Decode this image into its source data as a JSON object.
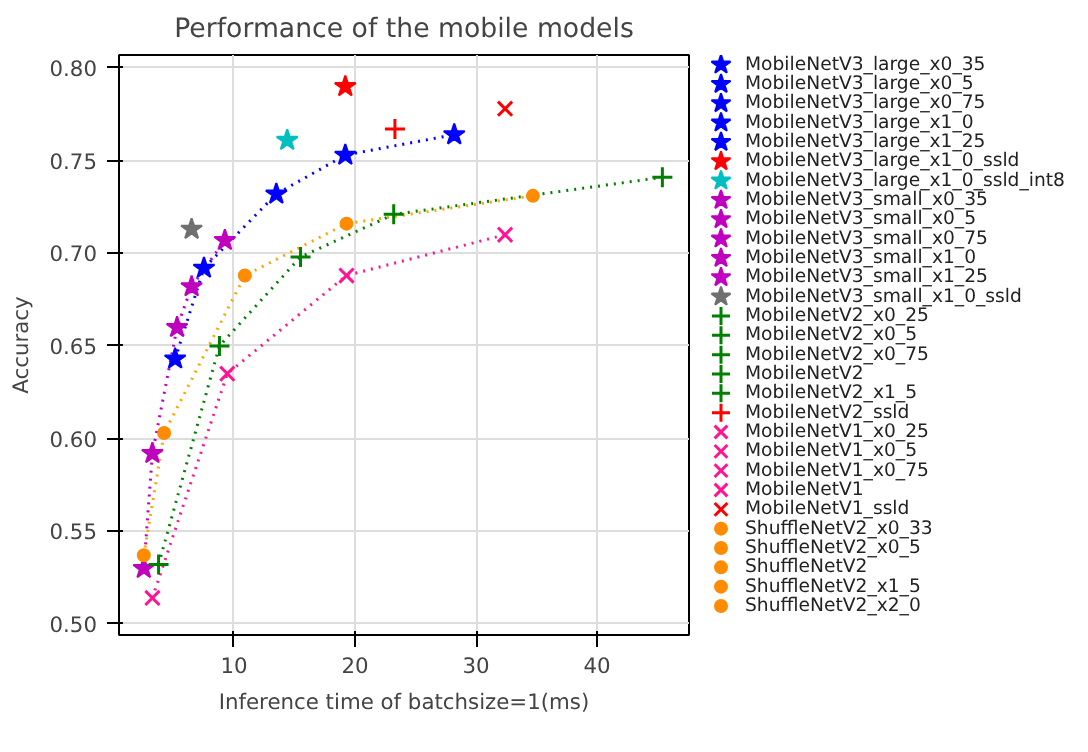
{
  "chart_data": {
    "type": "scatter",
    "title": "Performance of the mobile models",
    "xlabel": "Inference time of batchsize=1(ms)",
    "ylabel": "Accuracy",
    "xlim": [
      0.5,
      47.6
    ],
    "ylim": [
      0.494,
      0.807
    ],
    "xticks": [
      10,
      20,
      30,
      40
    ],
    "yticks": [
      {
        "value": 0.5,
        "label": "0.50"
      },
      {
        "value": 0.55,
        "label": "0.55"
      },
      {
        "value": 0.6,
        "label": "0.60"
      },
      {
        "value": 0.65,
        "label": "0.65"
      },
      {
        "value": 0.7,
        "label": "0.70"
      },
      {
        "value": 0.75,
        "label": "0.75"
      },
      {
        "value": 0.8,
        "label": "0.80"
      }
    ],
    "grid": true,
    "legend": "right",
    "series": [
      {
        "type": "line",
        "color": "#0000ff",
        "line_style": "dotted",
        "marker": "none",
        "x": [
          5.14,
          7.52,
          13.5,
          19.2,
          28.2
        ],
        "values": [
          0.643,
          0.692,
          0.732,
          0.753,
          0.764
        ]
      },
      {
        "type": "line",
        "color": "#bf00bf",
        "line_style": "dotted",
        "marker": "none",
        "x": [
          2.55,
          3.26,
          5.3,
          6.5,
          9.25
        ],
        "values": [
          0.53,
          0.592,
          0.66,
          0.682,
          0.707
        ]
      },
      {
        "type": "line",
        "color": "#008000",
        "line_style": "dotted",
        "marker": "none",
        "x": [
          3.77,
          8.8,
          15.5,
          23.2,
          45.4
        ],
        "values": [
          0.532,
          0.65,
          0.698,
          0.721,
          0.741
        ]
      },
      {
        "type": "line",
        "color": "#ff1493",
        "line_style": "dotted",
        "marker": "none",
        "x": [
          3.26,
          9.45,
          19.3,
          32.4
        ],
        "values": [
          0.514,
          0.635,
          0.688,
          0.71
        ]
      },
      {
        "type": "line",
        "color": "#ffa500",
        "line_style": "dotted",
        "marker": "none",
        "x": [
          2.55,
          4.23,
          10.9,
          19.3,
          34.7
        ],
        "values": [
          0.537,
          0.603,
          0.688,
          0.716,
          0.731
        ]
      },
      {
        "name": "MobileNetV3_large_x0_35",
        "color": "#0000ff",
        "marker": "star",
        "x": [
          5.14
        ],
        "values": [
          0.643
        ]
      },
      {
        "name": "MobileNetV3_large_x0_5",
        "color": "#0000ff",
        "marker": "star",
        "x": [
          7.52
        ],
        "values": [
          0.692
        ]
      },
      {
        "name": "MobileNetV3_large_x0_75",
        "color": "#0000ff",
        "marker": "star",
        "x": [
          13.5
        ],
        "values": [
          0.732
        ]
      },
      {
        "name": "MobileNetV3_large_x1_0",
        "color": "#0000ff",
        "marker": "star",
        "x": [
          19.2
        ],
        "values": [
          0.753
        ]
      },
      {
        "name": "MobileNetV3_large_x1_25",
        "color": "#0000ff",
        "marker": "star",
        "x": [
          28.2
        ],
        "values": [
          0.764
        ]
      },
      {
        "name": "MobileNetV3_large_x1_0_ssld",
        "color": "#ff0000",
        "marker": "star",
        "x": [
          19.2
        ],
        "values": [
          0.79
        ]
      },
      {
        "name": "MobileNetV3_large_x1_0_ssld_int8",
        "color": "#00bfbf",
        "marker": "star",
        "x": [
          14.4
        ],
        "values": [
          0.761
        ]
      },
      {
        "name": "MobileNetV3_small_x0_35",
        "color": "#bf00bf",
        "marker": "star",
        "x": [
          2.55
        ],
        "values": [
          0.53
        ]
      },
      {
        "name": "MobileNetV3_small_x0_5",
        "color": "#bf00bf",
        "marker": "star",
        "x": [
          3.26
        ],
        "values": [
          0.592
        ]
      },
      {
        "name": "MobileNetV3_small_x0_75",
        "color": "#bf00bf",
        "marker": "star",
        "x": [
          5.3
        ],
        "values": [
          0.66
        ]
      },
      {
        "name": "MobileNetV3_small_x1_0",
        "color": "#bf00bf",
        "marker": "star",
        "x": [
          6.5
        ],
        "values": [
          0.682
        ]
      },
      {
        "name": "MobileNetV3_small_x1_25",
        "color": "#bf00bf",
        "marker": "star",
        "x": [
          9.25
        ],
        "values": [
          0.707
        ]
      },
      {
        "name": "MobileNetV3_small_x1_0_ssld",
        "color": "#707070",
        "marker": "star",
        "x": [
          6.5
        ],
        "values": [
          0.713
        ]
      },
      {
        "name": "MobileNetV2_x0_25",
        "color": "#008000",
        "marker": "cross",
        "x": [
          3.77
        ],
        "values": [
          0.532
        ]
      },
      {
        "name": "MobileNetV2_x0_5",
        "color": "#008000",
        "marker": "cross",
        "x": [
          8.8
        ],
        "values": [
          0.65
        ]
      },
      {
        "name": "MobileNetV2_x0_75",
        "color": "#008000",
        "marker": "cross",
        "x": [
          15.5
        ],
        "values": [
          0.698
        ]
      },
      {
        "name": "MobileNetV2",
        "color": "#008000",
        "marker": "cross",
        "x": [
          23.2
        ],
        "values": [
          0.721
        ]
      },
      {
        "name": "MobileNetV2_x1_5",
        "color": "#008000",
        "marker": "cross",
        "x": [
          45.4
        ],
        "values": [
          0.741
        ]
      },
      {
        "name": "MobileNetV2_ssld",
        "color": "#ff0000",
        "marker": "cross",
        "x": [
          23.3
        ],
        "values": [
          0.767
        ]
      },
      {
        "name": "MobileNetV1_x0_25",
        "color": "#ff1493",
        "marker": "x",
        "x": [
          3.26
        ],
        "values": [
          0.514
        ]
      },
      {
        "name": "MobileNetV1_x0_5",
        "color": "#ff1493",
        "marker": "x",
        "x": [
          9.45
        ],
        "values": [
          0.635
        ]
      },
      {
        "name": "MobileNetV1_x0_75",
        "color": "#ff1493",
        "marker": "x",
        "x": [
          19.3
        ],
        "values": [
          0.688
        ]
      },
      {
        "name": "MobileNetV1",
        "color": "#ff1493",
        "marker": "x",
        "x": [
          32.4
        ],
        "values": [
          0.71
        ]
      },
      {
        "name": "MobileNetV1_ssld",
        "color": "#ff0000",
        "marker": "x",
        "x": [
          32.4
        ],
        "values": [
          0.778
        ]
      },
      {
        "name": "ShuffleNetV2_x0_33",
        "color": "#ff8c00",
        "marker": "circle",
        "x": [
          2.55
        ],
        "values": [
          0.537
        ]
      },
      {
        "name": "ShuffleNetV2_x0_5",
        "color": "#ff8c00",
        "marker": "circle",
        "x": [
          4.23
        ],
        "values": [
          0.603
        ]
      },
      {
        "name": "ShuffleNetV2",
        "color": "#ff8c00",
        "marker": "circle",
        "x": [
          10.9
        ],
        "values": [
          0.688
        ]
      },
      {
        "name": "ShuffleNetV2_x1_5",
        "color": "#ff8c00",
        "marker": "circle",
        "x": [
          19.3
        ],
        "values": [
          0.716
        ]
      },
      {
        "name": "ShuffleNetV2_x2_0",
        "color": "#ff8c00",
        "marker": "circle",
        "x": [
          34.7
        ],
        "values": [
          0.731
        ]
      }
    ]
  }
}
